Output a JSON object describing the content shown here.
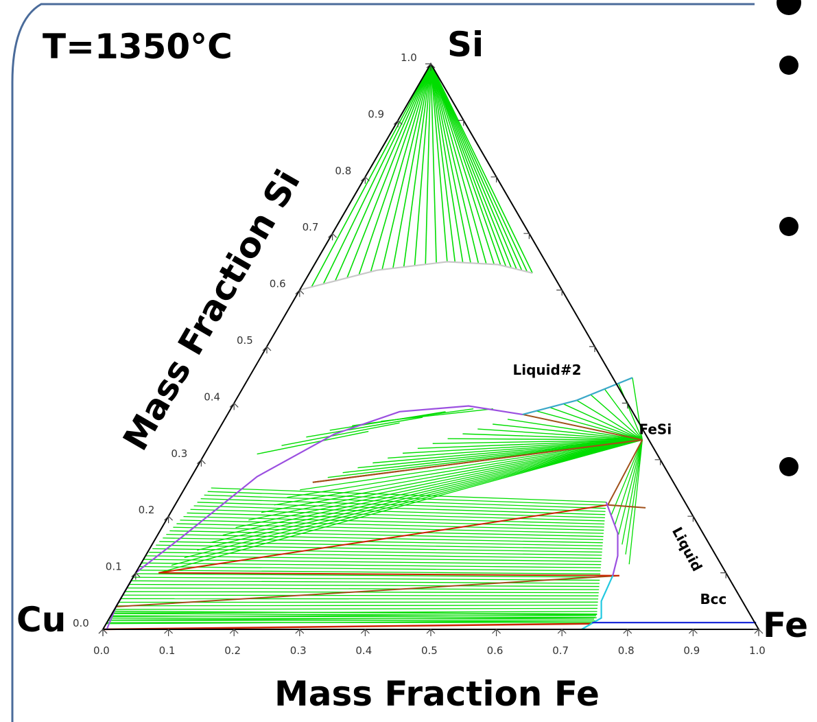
{
  "chart_data": {
    "type": "ternary-phase-diagram",
    "title": "T=1350°C",
    "components": {
      "top": "Si",
      "left": "Cu",
      "right": "Fe"
    },
    "xlabel": "Mass Fraction Fe",
    "ylabel": "Mass Fraction Si",
    "bottom_ticks": [
      "0.0",
      "0.1",
      "0.2",
      "0.3",
      "0.4",
      "0.5",
      "0.6",
      "0.7",
      "0.8",
      "0.9",
      "1.0"
    ],
    "left_ticks": [
      "0.0",
      "0.1",
      "0.2",
      "0.3",
      "0.4",
      "0.5",
      "0.6",
      "0.7",
      "0.8",
      "0.9",
      "1.0"
    ],
    "region_labels": [
      {
        "text": "Liquid#2",
        "fe": 0.4,
        "si": 0.45
      },
      {
        "text": "FeSi",
        "fe": 0.645,
        "si": 0.345
      },
      {
        "text": "Liquid",
        "fe": 0.78,
        "si": 0.175,
        "rotate": 62
      },
      {
        "text": "Bcc",
        "fe": 0.888,
        "si": 0.045
      }
    ],
    "boundaries": [
      {
        "name": "si-liquid-boundary",
        "color": "#c8c8c8",
        "points": [
          [
            0.0,
            0.6
          ],
          [
            0.1,
            0.635
          ],
          [
            0.2,
            0.65
          ],
          [
            0.28,
            0.645
          ],
          [
            0.34,
            0.63
          ]
        ]
      },
      {
        "name": "liquid2-lower-boundary",
        "color": "#9b4fe0",
        "points": [
          [
            0.45,
            0.38
          ],
          [
            0.36,
            0.395
          ],
          [
            0.26,
            0.385
          ],
          [
            0.18,
            0.345
          ],
          [
            0.1,
            0.27
          ],
          [
            0.04,
            0.165
          ],
          [
            0.0,
            0.1
          ],
          [
            0.0,
            0.04
          ],
          [
            0.006,
            0.0
          ]
        ]
      },
      {
        "name": "fesi-liquid-boundary",
        "color": "#3aa8c8",
        "points": [
          [
            0.45,
            0.38
          ],
          [
            0.52,
            0.405
          ],
          [
            0.585,
            0.445
          ]
        ]
      },
      {
        "name": "liquid-fe-boundary",
        "color": "#9b4fe0",
        "points": [
          [
            0.655,
            0.225
          ],
          [
            0.7,
            0.17
          ],
          [
            0.72,
            0.13
          ],
          [
            0.73,
            0.095
          ]
        ]
      },
      {
        "name": "bcc-boundary",
        "color": "#22c8e0",
        "points": [
          [
            0.73,
            0.095
          ],
          [
            0.735,
            0.05
          ],
          [
            0.75,
            0.02
          ],
          [
            0.73,
            0.0
          ]
        ]
      },
      {
        "name": "bcc-fe-edge",
        "color": "#1a2ad8",
        "points": [
          [
            0.74,
            0.012
          ],
          [
            0.99,
            0.012
          ]
        ]
      }
    ]
  }
}
